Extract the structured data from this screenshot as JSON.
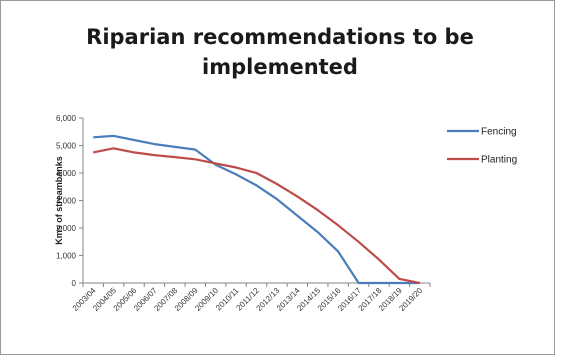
{
  "chart_data": {
    "type": "line",
    "title": "Riparian recommendations to be implemented",
    "xlabel": "",
    "ylabel": "Kms of streambanks",
    "ylim": [
      0,
      6000
    ],
    "yticks": [
      0,
      1000,
      2000,
      3000,
      4000,
      5000,
      6000
    ],
    "ytick_labels": [
      "0",
      "1,000",
      "2,000",
      "3,000",
      "4,000",
      "5,000",
      "6,000"
    ],
    "categories": [
      "2003/04",
      "2004/05",
      "2005/06",
      "2006/07",
      "2007/08",
      "2008/09",
      "2009/10",
      "2010/11",
      "2011/12",
      "2012/13",
      "2013/14",
      "2014/15",
      "2015/16",
      "2016/17",
      "2017/18",
      "2018/19",
      "2019/20"
    ],
    "series": [
      {
        "name": "Fencing",
        "color": "#4a7ebb",
        "values": [
          5300,
          5350,
          5200,
          5050,
          4950,
          4850,
          4300,
          3950,
          3550,
          3050,
          2450,
          1850,
          1150,
          0,
          0,
          0,
          0
        ]
      },
      {
        "name": "Planting",
        "color": "#be4b48",
        "values": [
          4750,
          4900,
          4750,
          4650,
          4580,
          4500,
          4350,
          4200,
          4000,
          3600,
          3150,
          2650,
          2100,
          1500,
          850,
          150,
          0
        ]
      }
    ],
    "grid": false,
    "legend_position": "right"
  }
}
